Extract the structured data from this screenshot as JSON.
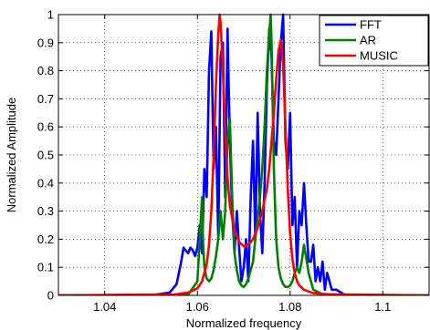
{
  "chart_data": {
    "type": "line",
    "title": "",
    "xlabel": "Normalized frequency",
    "ylabel": "Normalized Amplitude",
    "xlim": [
      1.03,
      1.11
    ],
    "ylim": [
      0,
      1
    ],
    "x_ticks": [
      1.04,
      1.06,
      1.08,
      1.1
    ],
    "x_tick_labels": [
      "1.04",
      "1.06",
      "1.08",
      "1.1"
    ],
    "y_ticks": [
      0,
      0.1,
      0.2,
      0.3,
      0.4,
      0.5,
      0.6,
      0.7,
      0.8,
      0.9,
      1
    ],
    "y_tick_labels": [
      "0",
      "0.1",
      "0.2",
      "0.3",
      "0.4",
      "0.5",
      "0.6",
      "0.7",
      "0.8",
      "0.9",
      "1"
    ],
    "grid": "dotted",
    "legend_position": "top-right",
    "series": [
      {
        "name": "FFT",
        "color": "#0000ff",
        "x": [
          1.03,
          1.05,
          1.052,
          1.054,
          1.0555,
          1.0565,
          1.057,
          1.0575,
          1.058,
          1.0585,
          1.059,
          1.0595,
          1.06,
          1.0605,
          1.061,
          1.0615,
          1.062,
          1.0625,
          1.063,
          1.0635,
          1.064,
          1.0645,
          1.065,
          1.0655,
          1.066,
          1.0665,
          1.067,
          1.0675,
          1.068,
          1.0685,
          1.069,
          1.0695,
          1.07,
          1.0705,
          1.071,
          1.0715,
          1.072,
          1.0725,
          1.073,
          1.0735,
          1.074,
          1.0745,
          1.075,
          1.0755,
          1.076,
          1.0765,
          1.077,
          1.0775,
          1.078,
          1.0785,
          1.079,
          1.0795,
          1.08,
          1.0805,
          1.081,
          1.0815,
          1.082,
          1.0825,
          1.083,
          1.0835,
          1.084,
          1.0845,
          1.085,
          1.0855,
          1.086,
          1.0865,
          1.087,
          1.0875,
          1.088,
          1.089,
          1.09,
          1.092,
          1.11
        ],
        "y": [
          0,
          0,
          0.005,
          0.01,
          0.04,
          0.12,
          0.17,
          0.16,
          0.15,
          0.17,
          0.16,
          0.14,
          0.17,
          0.25,
          0.15,
          0.45,
          0.35,
          0.8,
          0.94,
          0.45,
          0.6,
          0.2,
          0.85,
          0.9,
          0.35,
          0.95,
          0.55,
          0.3,
          0.15,
          0.3,
          0.17,
          0.05,
          0.1,
          0.2,
          0.05,
          0.35,
          0.55,
          0.2,
          0.65,
          0.3,
          0.15,
          0.4,
          0.75,
          0.95,
          0.85,
          0.55,
          0.5,
          0.7,
          0.9,
          1.0,
          0.55,
          0.45,
          0.65,
          0.25,
          0.35,
          0.1,
          0.3,
          0.25,
          0.4,
          0.25,
          0.12,
          0.12,
          0.18,
          0.05,
          0.1,
          0.05,
          0.12,
          0.02,
          0.08,
          0.02,
          0.02,
          0,
          0
        ]
      },
      {
        "name": "AR",
        "color": "#008000",
        "x": [
          1.03,
          1.058,
          1.06,
          1.0605,
          1.061,
          1.0612,
          1.0615,
          1.062,
          1.0625,
          1.063,
          1.0635,
          1.064,
          1.0645,
          1.065,
          1.0655,
          1.066,
          1.0665,
          1.067,
          1.0675,
          1.068,
          1.0685,
          1.069,
          1.0695,
          1.07,
          1.0705,
          1.071,
          1.0715,
          1.072,
          1.0725,
          1.073,
          1.0735,
          1.074,
          1.0745,
          1.075,
          1.0755,
          1.0758,
          1.076,
          1.0765,
          1.077,
          1.0775,
          1.078,
          1.0785,
          1.079,
          1.0795,
          1.08,
          1.0805,
          1.081,
          1.0815,
          1.082,
          1.0825,
          1.083,
          1.0835,
          1.084,
          1.085,
          1.087,
          1.11
        ],
        "y": [
          0,
          0.003,
          0.05,
          0.2,
          0.35,
          0.2,
          0.1,
          0.06,
          0.05,
          0.06,
          0.09,
          0.14,
          0.2,
          0.3,
          0.2,
          0.3,
          0.55,
          0.63,
          0.35,
          0.15,
          0.09,
          0.05,
          0.035,
          0.03,
          0.04,
          0.06,
          0.09,
          0.12,
          0.2,
          0.28,
          0.35,
          0.45,
          0.6,
          0.8,
          0.93,
          1.0,
          0.9,
          0.45,
          0.2,
          0.1,
          0.06,
          0.04,
          0.03,
          0.03,
          0.035,
          0.05,
          0.08,
          0.1,
          0.08,
          0.12,
          0.18,
          0.13,
          0.08,
          0.02,
          0.004,
          0
        ]
      },
      {
        "name": "MUSIC",
        "color": "#ff0000",
        "x": [
          1.03,
          1.055,
          1.058,
          1.06,
          1.061,
          1.062,
          1.0625,
          1.063,
          1.0635,
          1.064,
          1.0645,
          1.0648,
          1.065,
          1.0655,
          1.066,
          1.0665,
          1.067,
          1.068,
          1.069,
          1.07,
          1.071,
          1.072,
          1.073,
          1.074,
          1.075,
          1.0755,
          1.076,
          1.0765,
          1.077,
          1.0775,
          1.078,
          1.0785,
          1.079,
          1.0795,
          1.08,
          1.0805,
          1.081,
          1.0815,
          1.082,
          1.083,
          1.085,
          1.09,
          1.11
        ],
        "y": [
          0,
          0.003,
          0.01,
          0.025,
          0.05,
          0.11,
          0.18,
          0.3,
          0.5,
          0.75,
          0.93,
          1.0,
          0.97,
          0.8,
          0.58,
          0.42,
          0.32,
          0.23,
          0.19,
          0.175,
          0.18,
          0.2,
          0.24,
          0.3,
          0.38,
          0.45,
          0.55,
          0.65,
          0.77,
          0.87,
          0.91,
          0.82,
          0.6,
          0.38,
          0.22,
          0.13,
          0.08,
          0.05,
          0.035,
          0.02,
          0.008,
          0.002,
          0
        ]
      }
    ]
  }
}
